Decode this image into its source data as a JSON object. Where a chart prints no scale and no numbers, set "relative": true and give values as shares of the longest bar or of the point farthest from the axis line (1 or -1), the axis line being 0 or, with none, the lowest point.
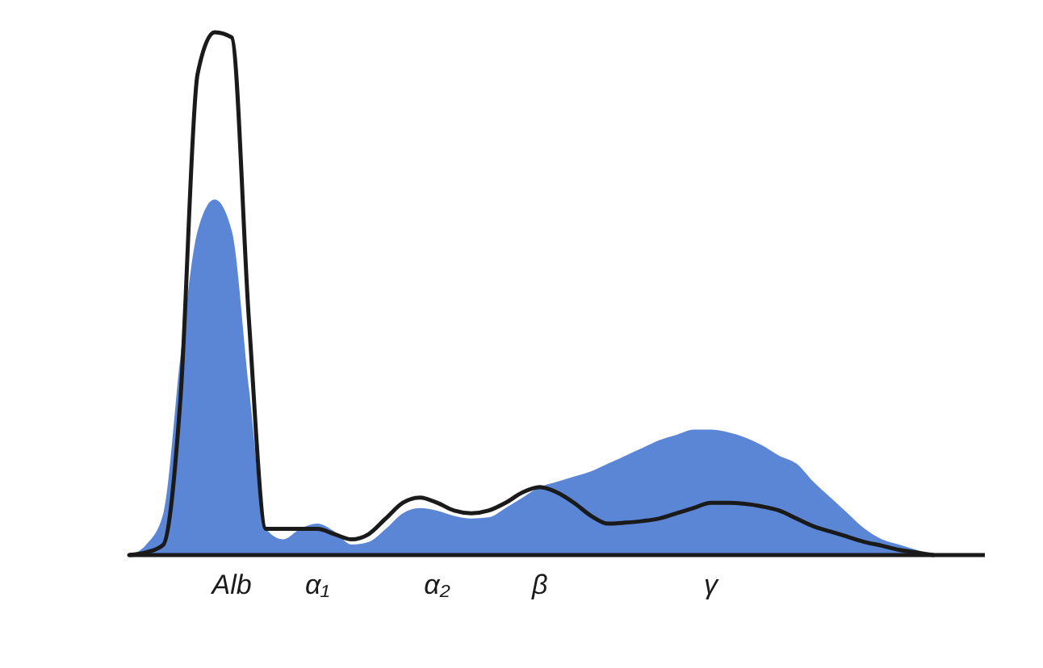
{
  "chart_data": {
    "type": "area",
    "relative": true,
    "tick_labels": "x",
    "categories": [
      null,
      null,
      null,
      null,
      null,
      null,
      "Alb",
      null,
      null,
      null,
      null,
      "α₁",
      null,
      null,
      null,
      null,
      null,
      null,
      "α₂",
      null,
      null,
      null,
      null,
      null,
      "β",
      null,
      null,
      null,
      null,
      null,
      null,
      null,
      null,
      null,
      "γ",
      null,
      null,
      null,
      null,
      null,
      null,
      null,
      null,
      null,
      null,
      null,
      null,
      null
    ],
    "series": [
      {
        "color": "#5b86d6",
        "values": [
          0,
          0.02,
          0.08,
          0.38,
          0.62,
          0.68,
          0.62,
          0.32,
          0.05,
          0.03,
          0.05,
          0.06,
          0.045,
          0.02,
          0.025,
          0.05,
          0.08,
          0.09,
          0.085,
          0.075,
          0.07,
          0.072,
          0.09,
          0.11,
          0.13,
          0.14,
          0.15,
          0.16,
          0.175,
          0.19,
          0.205,
          0.22,
          0.23,
          0.24,
          0.24,
          0.235,
          0.225,
          0.21,
          0.19,
          0.175,
          0.14,
          0.11,
          0.08,
          0.05,
          0.03,
          0.02,
          0.01,
          0
        ]
      },
      {
        "type": "line",
        "color": "#1a1a1a",
        "values": [
          0,
          0.005,
          0.02,
          0.3,
          0.92,
          1,
          0.99,
          0.45,
          0.05,
          0.05,
          0.05,
          0.05,
          0.04,
          0.03,
          0.04,
          0.07,
          0.1,
          0.11,
          0.1,
          0.085,
          0.08,
          0.085,
          0.1,
          0.12,
          0.13,
          0.12,
          0.1,
          0.075,
          0.06,
          0.062,
          0.065,
          0.07,
          0.08,
          0.09,
          0.1,
          0.1,
          0.098,
          0.093,
          0.085,
          0.07,
          0.055,
          0.045,
          0.035,
          0.025,
          0.018,
          0.01,
          0.005,
          0
        ]
      }
    ]
  }
}
